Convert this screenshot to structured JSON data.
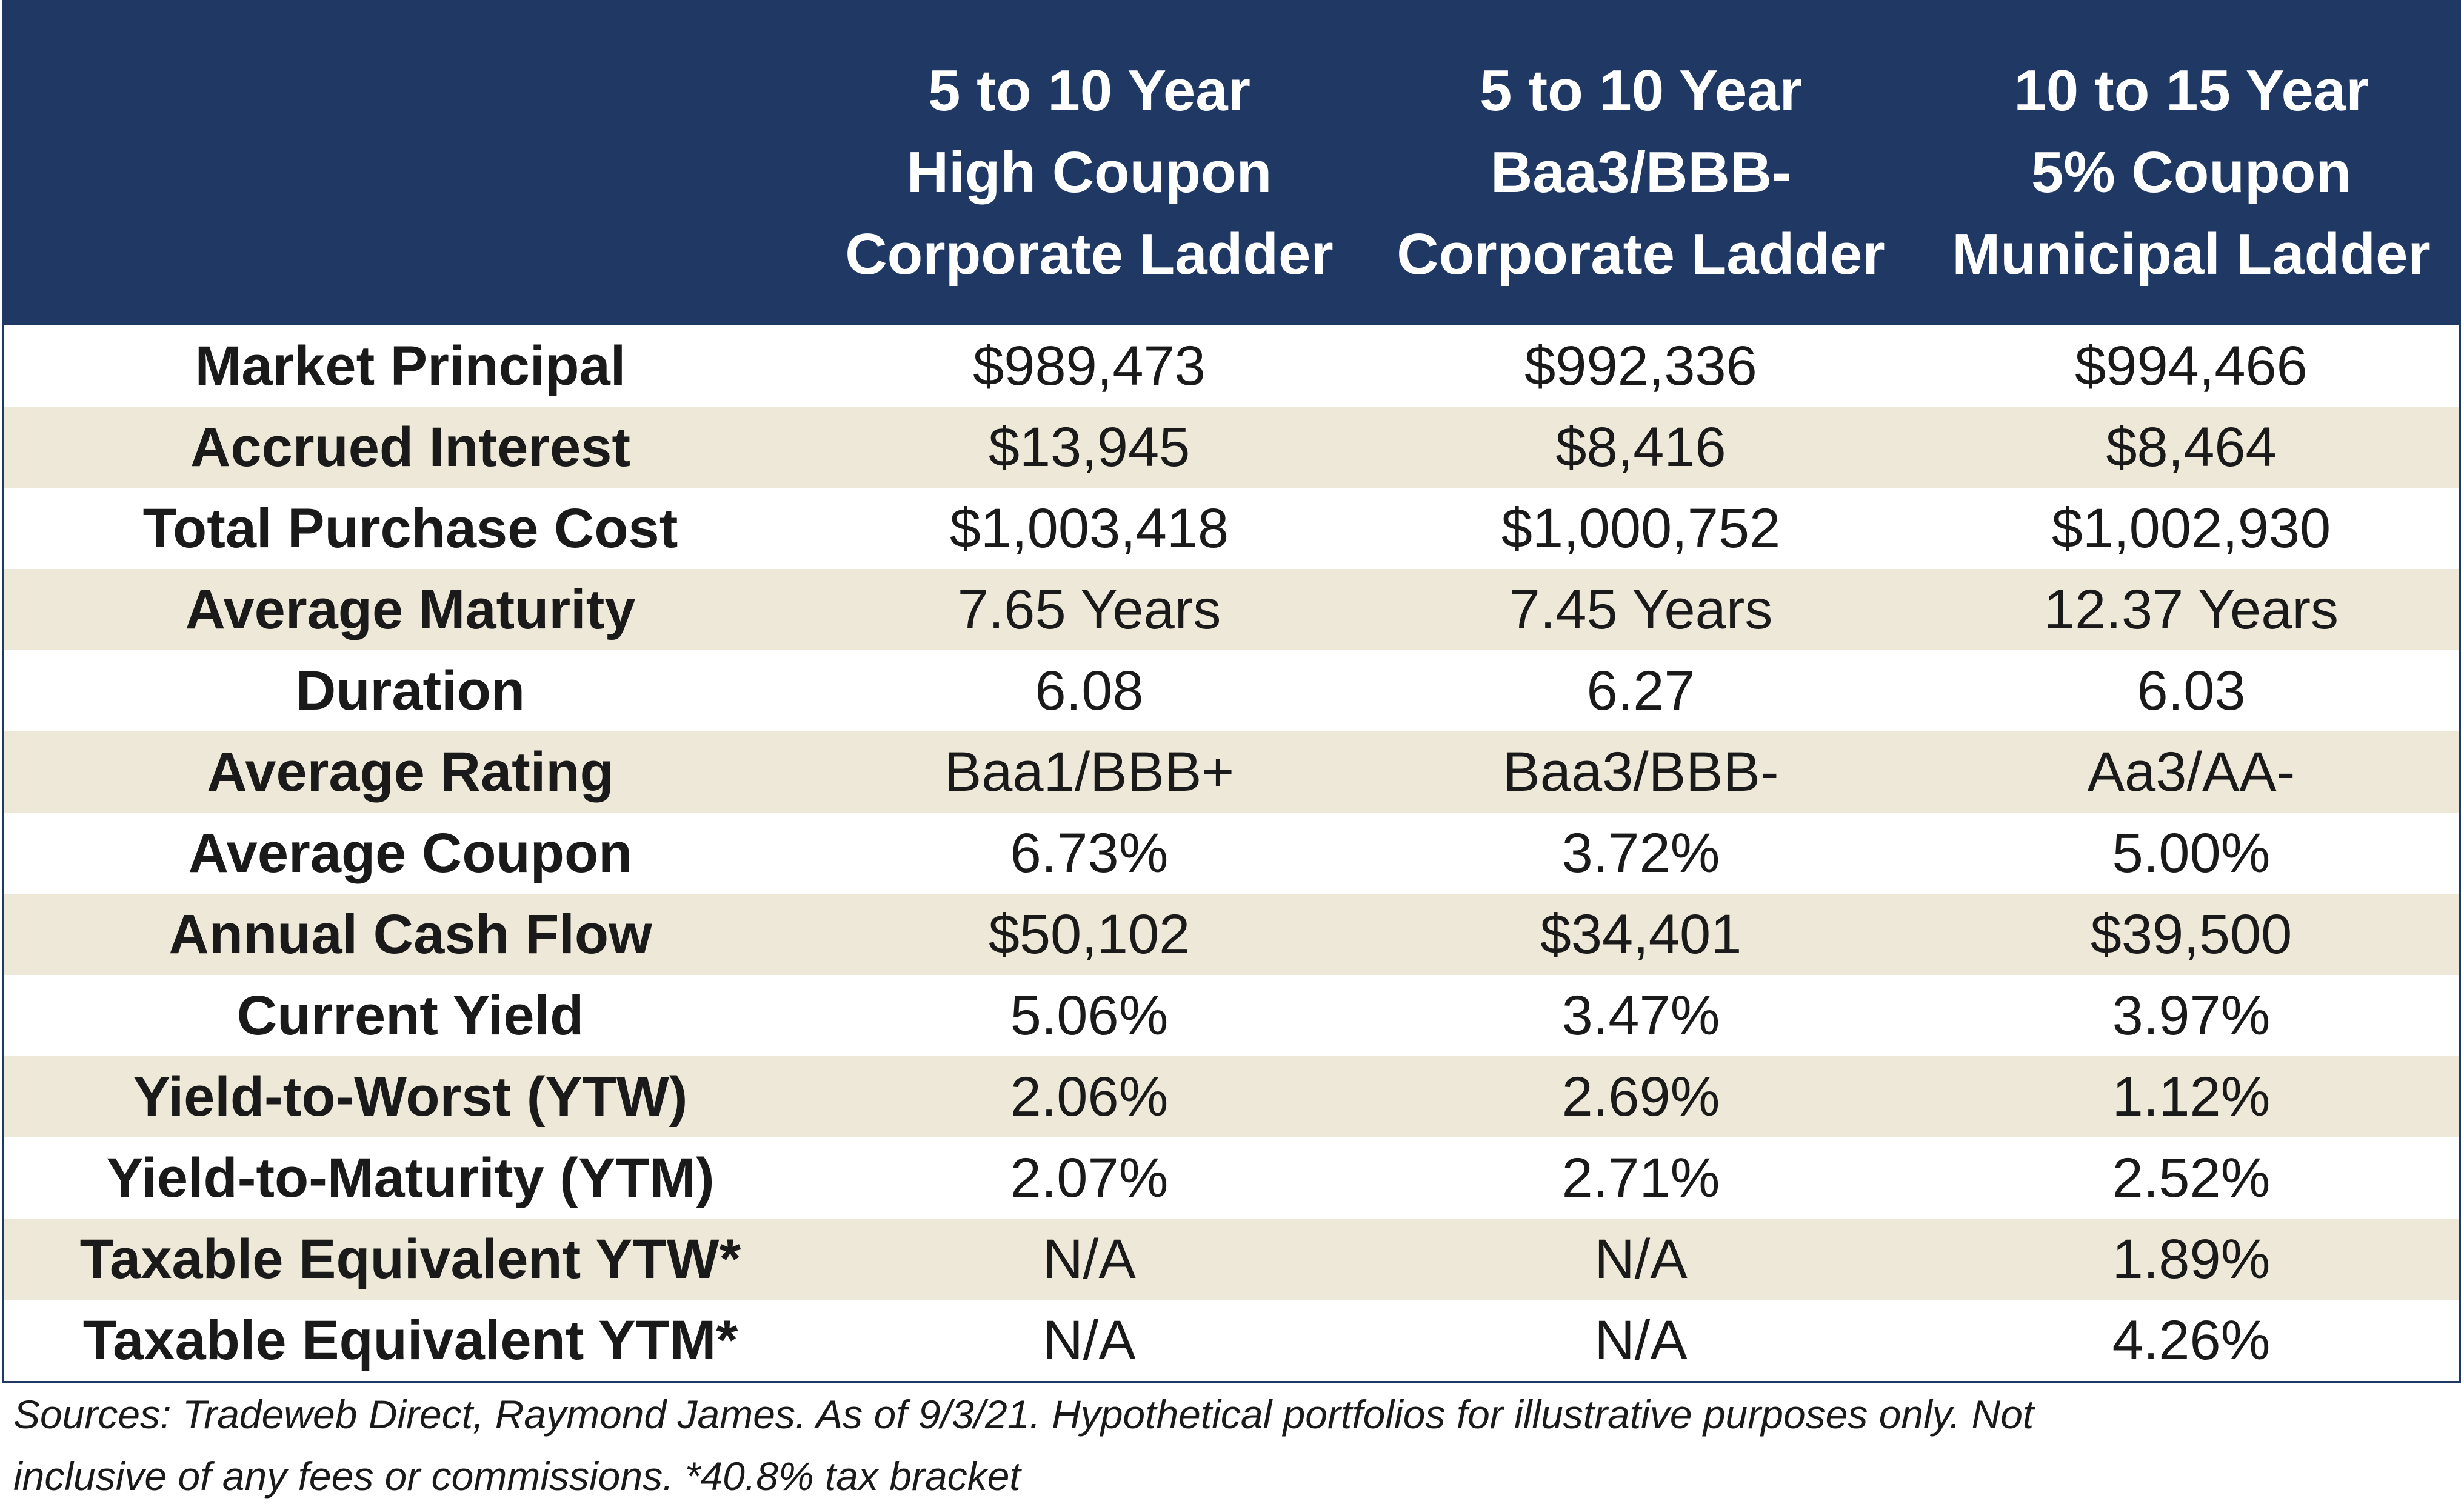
{
  "chart_data": {
    "type": "table",
    "columns": [
      "5 to 10 Year\nHigh Coupon\nCorporate Ladder",
      "5 to 10 Year\nBaa3/BBB-\nCorporate Ladder",
      "10 to 15 Year\n5% Coupon\nMunicipal Ladder"
    ],
    "rows": [
      {
        "label": "Market Principal",
        "values": [
          "$989,473",
          "$992,336",
          "$994,466"
        ]
      },
      {
        "label": "Accrued Interest",
        "values": [
          "$13,945",
          "$8,416",
          "$8,464"
        ]
      },
      {
        "label": "Total Purchase Cost",
        "values": [
          "$1,003,418",
          "$1,000,752",
          "$1,002,930"
        ]
      },
      {
        "label": "Average Maturity",
        "values": [
          "7.65 Years",
          "7.45 Years",
          "12.37 Years"
        ]
      },
      {
        "label": "Duration",
        "values": [
          "6.08",
          "6.27",
          "6.03"
        ]
      },
      {
        "label": "Average Rating",
        "values": [
          "Baa1/BBB+",
          "Baa3/BBB-",
          "Aa3/AA-"
        ]
      },
      {
        "label": "Average Coupon",
        "values": [
          "6.73%",
          "3.72%",
          "5.00%"
        ]
      },
      {
        "label": "Annual Cash Flow",
        "values": [
          "$50,102",
          "$34,401",
          "$39,500"
        ]
      },
      {
        "label": "Current Yield",
        "values": [
          "5.06%",
          "3.47%",
          "3.97%"
        ]
      },
      {
        "label": "Yield-to-Worst (YTW)",
        "values": [
          "2.06%",
          "2.69%",
          "1.12%"
        ]
      },
      {
        "label": "Yield-to-Maturity (YTM)",
        "values": [
          "2.07%",
          "2.71%",
          "2.52%"
        ]
      },
      {
        "label": "Taxable Equivalent YTW*",
        "values": [
          "N/A",
          "N/A",
          "1.89%"
        ]
      },
      {
        "label": "Taxable Equivalent YTM*",
        "values": [
          "N/A",
          "N/A",
          "4.26%"
        ]
      }
    ],
    "footnote": [
      "Sources: Tradeweb Direct, Raymond James. As of 9/3/21. Hypothetical portfolios for illustrative purposes only. Not",
      "inclusive of any fees or commissions. *40.8% tax bracket"
    ]
  },
  "colors": {
    "header_background": "#1f3864",
    "header_text": "#ffffff",
    "shaded_row": "#ede8d7",
    "plain_row": "#ffffff"
  }
}
